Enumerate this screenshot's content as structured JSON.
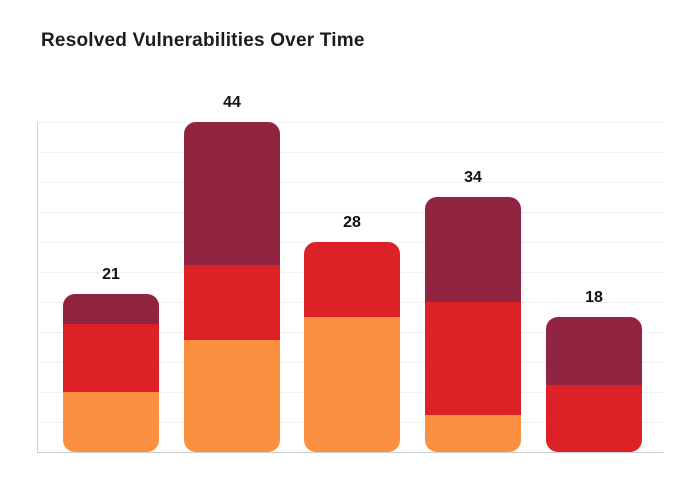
{
  "title": "Resolved Vulnerabilities Over Time",
  "colors": {
    "background": "#ffffff",
    "title_text": "#1c1c1c",
    "label_text": "#111111",
    "gridline": "#eff0f3",
    "axis_line": "#c9ccd1",
    "segment_orange": "#fb9140",
    "segment_red": "#dc2127",
    "segment_maroon": "#912440"
  },
  "chart_data": {
    "type": "bar",
    "stacked": true,
    "title": "Resolved Vulnerabilities Over Time",
    "categories": [
      "",
      "",
      "",
      "",
      ""
    ],
    "totals": [
      21,
      44,
      28,
      34,
      18
    ],
    "value_labels": [
      "21",
      "44",
      "28",
      "34",
      "18"
    ],
    "series": [
      {
        "name": "orange-bottom-segment",
        "color": "#fb9140",
        "values": [
          8,
          15,
          18,
          5,
          0
        ]
      },
      {
        "name": "red-middle-segment",
        "color": "#dc2127",
        "values": [
          9,
          10,
          10,
          15,
          9
        ]
      },
      {
        "name": "maroon-top-segment",
        "color": "#912440",
        "values": [
          4,
          19,
          0,
          14,
          9
        ]
      }
    ],
    "ylim": [
      0,
      44
    ],
    "gridline_step": 4,
    "grid": "horizontal",
    "legend": "none",
    "x_axis_labels": "none",
    "y_axis_labels": "none"
  }
}
